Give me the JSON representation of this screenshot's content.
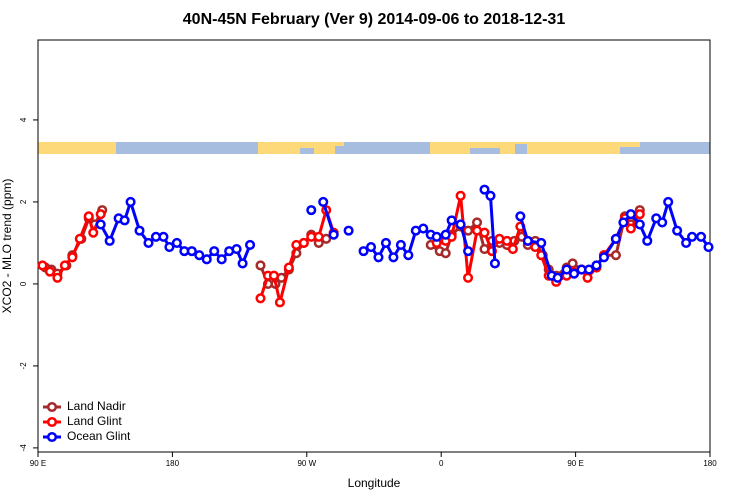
{
  "chart_data": {
    "type": "line",
    "title": "40N-45N February (Ver 9)   2014-09-06 to 2018-12-31",
    "x_label": "Longitude",
    "y_label": "XCO2 - MLO trend (ppm)",
    "xlim": [
      90,
      540
    ],
    "ylim": [
      -4.1,
      5.95
    ],
    "xticks": [
      {
        "value": 90,
        "label": "90 E"
      },
      180,
      {
        "value": 270,
        "label": "90 W"
      },
      {
        "value": 360,
        "label": "0"
      },
      {
        "value": 450,
        "label": "90 E"
      },
      {
        "value": 540,
        "label": "180"
      }
    ],
    "yticks": [
      -4,
      -2,
      0,
      2,
      4
    ],
    "grid": false,
    "legend": "bottom-left",
    "series": [
      {
        "name": "Land Nadir",
        "color": "#a52a2a",
        "x": [
          95,
          99,
          103,
          109,
          113,
          119,
          124,
          128,
          133,
          null,
          239,
          244,
          249,
          253,
          258,
          263,
          268,
          273,
          278,
          283,
          null,
          353,
          359,
          363,
          367,
          373,
          378,
          384,
          389,
          394,
          399,
          404,
          409,
          414,
          418,
          423,
          428,
          432,
          437,
          444,
          448,
          454,
          458,
          464,
          469,
          477,
          483,
          487,
          493
        ],
        "values": [
          0.4,
          0.35,
          0.25,
          0.45,
          0.7,
          1.1,
          1.6,
          1.45,
          1.8,
          null,
          0.45,
          0.0,
          0.0,
          0.15,
          0.35,
          0.75,
          1.0,
          1.2,
          1.0,
          1.1,
          null,
          0.95,
          0.8,
          0.75,
          1.2,
          1.4,
          1.3,
          1.5,
          0.85,
          1.05,
          1.0,
          0.95,
          1.05,
          1.15,
          0.95,
          1.05,
          0.7,
          0.35,
          0.2,
          0.4,
          0.5,
          0.35,
          0.3,
          0.45,
          0.7,
          0.7,
          1.65,
          1.45,
          1.8
        ]
      },
      {
        "name": "Land Glint",
        "color": "#ff0000",
        "x": [
          93,
          98,
          103,
          108,
          113,
          118,
          124,
          127,
          132,
          null,
          239,
          244,
          248,
          252,
          258,
          263,
          268,
          273,
          278,
          283,
          288,
          null,
          357,
          363,
          367,
          373,
          378,
          384,
          389,
          394,
          399,
          404,
          408,
          413,
          418,
          423,
          427,
          432,
          437,
          444,
          448,
          454,
          458,
          464,
          469,
          477,
          483,
          487,
          493
        ],
        "values": [
          0.45,
          0.3,
          0.15,
          0.45,
          0.65,
          1.1,
          1.65,
          1.25,
          1.7,
          null,
          -0.35,
          0.2,
          0.2,
          -0.45,
          0.4,
          0.95,
          1.0,
          1.15,
          1.15,
          1.8,
          1.25,
          null,
          1.0,
          1.05,
          1.15,
          2.15,
          0.15,
          1.3,
          1.25,
          0.8,
          1.1,
          1.05,
          0.85,
          1.4,
          1.05,
          0.9,
          0.7,
          0.2,
          0.05,
          0.2,
          0.3,
          0.35,
          0.15,
          0.4,
          0.7,
          1.1,
          1.6,
          1.35,
          1.7
        ]
      },
      {
        "name": "Ocean Glint",
        "color": "#0000ff",
        "x": [
          132,
          138,
          144,
          148,
          152,
          158,
          164,
          169,
          174,
          178,
          183,
          188,
          193,
          198,
          203,
          208,
          213,
          218,
          223,
          227,
          232,
          null,
          273,
          null,
          281,
          288,
          null,
          298,
          null,
          308,
          313,
          318,
          323,
          328,
          333,
          338,
          343,
          348,
          353,
          357,
          363,
          367,
          373,
          378,
          null,
          389,
          393,
          396,
          null,
          413,
          418,
          427,
          434,
          438,
          444,
          449,
          454,
          459,
          464,
          469,
          477,
          482,
          487,
          493,
          498,
          504,
          508,
          512,
          518,
          524,
          528,
          534,
          539
        ],
        "values": [
          1.45,
          1.05,
          1.6,
          1.55,
          2.0,
          1.3,
          1.0,
          1.15,
          1.15,
          0.9,
          1.0,
          0.8,
          0.8,
          0.7,
          0.6,
          0.8,
          0.6,
          0.8,
          0.85,
          0.5,
          0.95,
          null,
          1.8,
          null,
          2.0,
          1.2,
          null,
          1.3,
          null,
          0.8,
          0.9,
          0.65,
          1.0,
          0.65,
          0.95,
          0.7,
          1.3,
          1.35,
          1.2,
          1.15,
          1.2,
          1.55,
          1.45,
          0.8,
          null,
          2.3,
          2.15,
          0.5,
          null,
          1.65,
          1.05,
          1.0,
          0.2,
          0.15,
          0.35,
          0.25,
          0.35,
          0.35,
          0.45,
          0.65,
          1.1,
          1.5,
          1.7,
          1.45,
          1.05,
          1.6,
          1.5,
          2.0,
          1.3,
          1.0,
          1.15,
          1.15,
          0.9
        ]
      }
    ]
  }
}
